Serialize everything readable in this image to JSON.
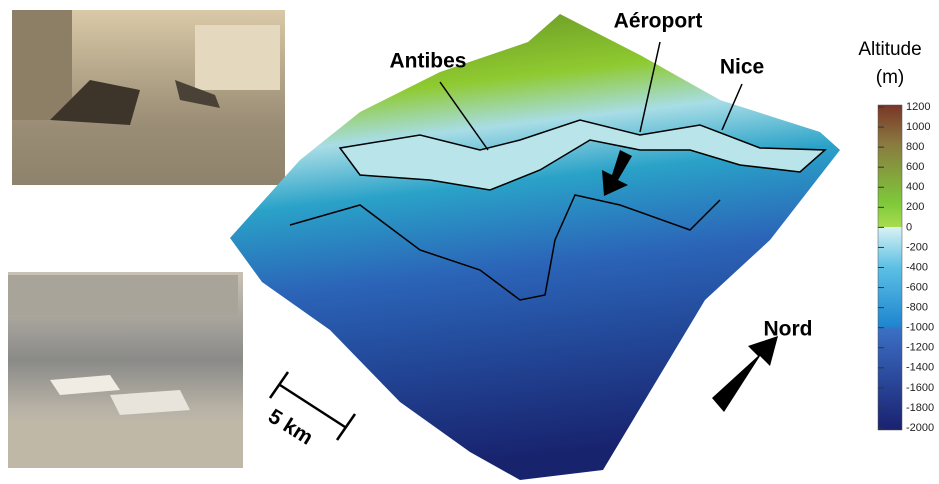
{
  "labels": {
    "antibes": "Antibes",
    "airport": "Aéroport",
    "nice": "Nice",
    "north": "Nord",
    "scale": "5 km"
  },
  "legend": {
    "title_line1": "Altitude",
    "title_line2": "(m)",
    "range": [
      -2000,
      1200
    ],
    "ticks": [
      1200,
      1000,
      800,
      600,
      400,
      200,
      0,
      -200,
      -400,
      -600,
      -800,
      -1000,
      -1200,
      -1400,
      -1600,
      -1800,
      -2000
    ]
  }
}
